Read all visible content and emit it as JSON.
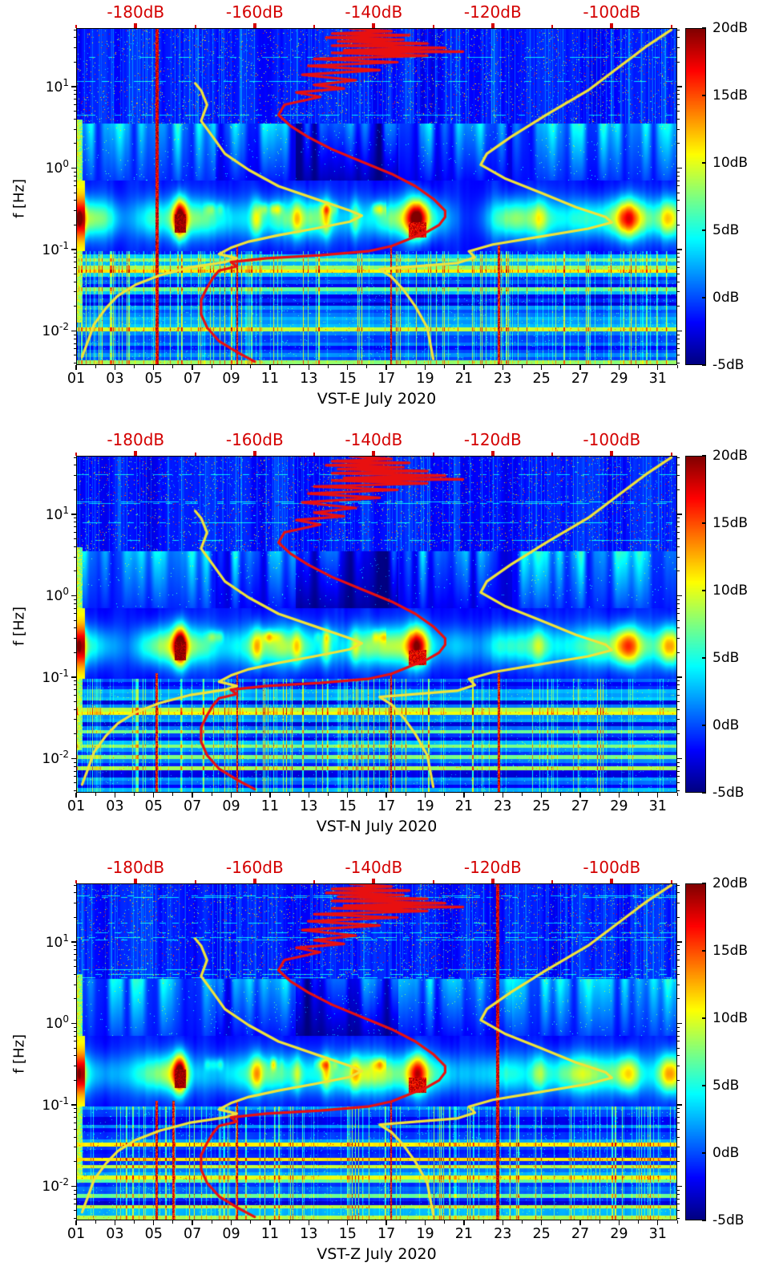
{
  "figure": {
    "ylabel": "f [Hz]",
    "top_axis_labels": [
      "-180dB",
      "-160dB",
      "-140dB",
      "-120dB",
      "-100dB"
    ],
    "x_ticks": [
      "01",
      "03",
      "05",
      "07",
      "09",
      "11",
      "13",
      "15",
      "17",
      "19",
      "21",
      "23",
      "25",
      "27",
      "29",
      "31"
    ],
    "y_ticks": [
      {
        "base": "10",
        "sup": "1",
        "value": 10
      },
      {
        "base": "10",
        "sup": "0",
        "value": 1
      },
      {
        "base": "10",
        "sup": "-1",
        "value": 0.1
      },
      {
        "base": "10",
        "sup": "-2",
        "value": 0.01
      }
    ],
    "colorbar_ticks": [
      {
        "label": "20dB",
        "value": 20
      },
      {
        "label": "15dB",
        "value": 15
      },
      {
        "label": "10dB",
        "value": 10
      },
      {
        "label": "5dB",
        "value": 5
      },
      {
        "label": "0dB",
        "value": 0
      },
      {
        "label": "-5dB",
        "value": -5
      }
    ],
    "panels": [
      {
        "title": "VST-E July 2020"
      },
      {
        "title": "VST-N July 2020"
      },
      {
        "title": "VST-Z July 2020"
      }
    ],
    "colors": {
      "curve_red": "#e81010",
      "curve_yellow": "#f0e33a",
      "label_red": "#d40000",
      "colormap": "jet"
    }
  },
  "chart_data": {
    "type": "heatmap",
    "description": "Three stacked spectrograms (relative noise power in dB, jet colormap) of station components VST-E, VST-N and VST-Z for July 2020, log frequency axis, with overlaid PSD curves referenced to the red top axis in dB.",
    "x_axis": {
      "label": "day of July 2020",
      "range": [
        1,
        32
      ],
      "tick_values": [
        1,
        3,
        5,
        7,
        9,
        11,
        13,
        15,
        17,
        19,
        21,
        23,
        25,
        27,
        29,
        31
      ]
    },
    "y_axis": {
      "label": "f [Hz]",
      "scale": "log",
      "range_hz": [
        0.0038,
        52.5
      ],
      "tick_values": [
        0.01,
        0.1,
        1,
        10
      ]
    },
    "color_axis": {
      "unit": "dB",
      "range": [
        -5,
        20
      ],
      "tick_values": [
        20,
        15,
        10,
        5,
        0,
        -5
      ],
      "colormap": "jet"
    },
    "top_axis": {
      "unit": "dB",
      "range": [
        -190,
        -89
      ],
      "ticks": [
        -180,
        -160,
        -140,
        -120,
        -100
      ]
    },
    "panels": [
      {
        "component": "VST-E",
        "title": "VST-E July 2020",
        "red_line_day": 5.15,
        "red_streak_days": [
          9.3,
          17.25,
          22.8
        ]
      },
      {
        "component": "VST-N",
        "title": "VST-N July 2020",
        "red_line_day": null,
        "red_streak_days": [
          5.15,
          9.3,
          17.25,
          22.8
        ]
      },
      {
        "component": "VST-Z",
        "title": "VST-Z July 2020",
        "red_line_day": 22.75,
        "red_streak_days": [
          5.15,
          6.0,
          9.3,
          17.25
        ]
      }
    ],
    "features": {
      "microseism_band_hz": [
        0.1,
        0.7
      ],
      "microseism_hotspots": [
        {
          "day": 1.1,
          "f_hz": 0.22
        },
        {
          "day": 6.35,
          "f_hz": 0.21
        },
        {
          "day": 18.6,
          "f_hz": 0.17
        },
        {
          "day": 29.5,
          "f_hz": 0.2
        }
      ],
      "quiet_period_days": [
        13,
        17
      ],
      "striped_quantized_zone_below_hz": 0.095
    },
    "overlays": {
      "red": {
        "meaning": "PSD vs frequency, value on top dB axis",
        "points": [
          [
            -144,
            52
          ],
          [
            -137,
            48
          ],
          [
            -147,
            45
          ],
          [
            -134,
            43
          ],
          [
            -148,
            40
          ],
          [
            -135,
            38
          ],
          [
            -146,
            36
          ],
          [
            -131,
            34
          ],
          [
            -147,
            32
          ],
          [
            -128,
            30
          ],
          [
            -145,
            28
          ],
          [
            -125,
            27
          ],
          [
            -147,
            26
          ],
          [
            -131,
            24
          ],
          [
            -150,
            22
          ],
          [
            -136,
            20
          ],
          [
            -151,
            18
          ],
          [
            -139,
            16
          ],
          [
            -152,
            14
          ],
          [
            -143,
            12
          ],
          [
            -150,
            10.5
          ],
          [
            -145,
            9.5
          ],
          [
            -153,
            8.5
          ],
          [
            -149,
            7.5
          ],
          [
            -155,
            6
          ],
          [
            -156,
            4.5
          ],
          [
            -154,
            3.3
          ],
          [
            -151,
            2.4
          ],
          [
            -147,
            1.7
          ],
          [
            -142,
            1.2
          ],
          [
            -137,
            0.85
          ],
          [
            -133,
            0.6
          ],
          [
            -130,
            0.42
          ],
          [
            -128,
            0.3
          ],
          [
            -128,
            0.25
          ],
          [
            -129,
            0.2
          ],
          [
            -131,
            0.165
          ],
          [
            -134,
            0.135
          ],
          [
            -137,
            0.11
          ],
          [
            -141,
            0.095
          ],
          [
            -149,
            0.085
          ],
          [
            -158,
            0.078
          ],
          [
            -164,
            0.07
          ],
          [
            -163,
            0.062
          ],
          [
            -166,
            0.055
          ],
          [
            -167,
            0.045
          ],
          [
            -168,
            0.034
          ],
          [
            -169,
            0.024
          ],
          [
            -169,
            0.016
          ],
          [
            -168,
            0.011
          ],
          [
            -166,
            0.0075
          ],
          [
            -163,
            0.0055
          ],
          [
            -160,
            0.0042
          ]
        ]
      },
      "yellow_left": {
        "meaning": "PSD percentile curve, value on top dB axis",
        "points": [
          [
            -170,
            11
          ],
          [
            -169,
            9
          ],
          [
            -168,
            6
          ],
          [
            -169,
            3.8
          ],
          [
            -167,
            2.4
          ],
          [
            -165,
            1.5
          ],
          [
            -161,
            0.95
          ],
          [
            -156,
            0.6
          ],
          [
            -149,
            0.4
          ],
          [
            -144,
            0.3
          ],
          [
            -142,
            0.26
          ],
          [
            -144,
            0.22
          ],
          [
            -150,
            0.18
          ],
          [
            -156,
            0.15
          ],
          [
            -161,
            0.125
          ],
          [
            -164,
            0.105
          ],
          [
            -166,
            0.088
          ],
          [
            -163,
            0.078
          ],
          [
            -165,
            0.07
          ],
          [
            -171,
            0.06
          ],
          [
            -176,
            0.048
          ],
          [
            -180,
            0.037
          ],
          [
            -183,
            0.027
          ],
          [
            -185,
            0.019
          ],
          [
            -187,
            0.012
          ],
          [
            -188,
            0.0075
          ],
          [
            -189,
            0.0048
          ]
        ]
      },
      "yellow_right": {
        "meaning": "PSD percentile curve, value on top dB axis",
        "points": [
          [
            -90,
            50
          ],
          [
            -94,
            32
          ],
          [
            -99,
            17
          ],
          [
            -104,
            9
          ],
          [
            -111,
            4.5
          ],
          [
            -117,
            2.4
          ],
          [
            -121,
            1.5
          ],
          [
            -122,
            1.1
          ],
          [
            -118,
            0.75
          ],
          [
            -112,
            0.5
          ],
          [
            -106,
            0.33
          ],
          [
            -101,
            0.25
          ],
          [
            -100,
            0.215
          ],
          [
            -104,
            0.18
          ],
          [
            -113,
            0.14
          ],
          [
            -120,
            0.115
          ],
          [
            -124,
            0.095
          ],
          [
            -123,
            0.08
          ],
          [
            -126,
            0.068
          ],
          [
            -139,
            0.057
          ],
          [
            -137,
            0.046
          ],
          [
            -135,
            0.032
          ],
          [
            -133,
            0.02
          ],
          [
            -131,
            0.011
          ],
          [
            -130,
            0.0045
          ]
        ]
      }
    }
  }
}
